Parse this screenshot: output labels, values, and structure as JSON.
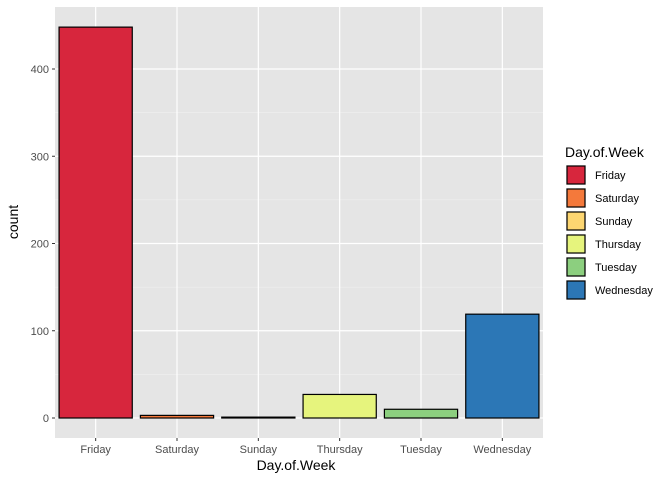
{
  "chart_data": {
    "type": "bar",
    "xlabel": "Day.of.Week",
    "ylabel": "count",
    "categories": [
      "Friday",
      "Saturday",
      "Sunday",
      "Thursday",
      "Tuesday",
      "Wednesday"
    ],
    "values": [
      448,
      3,
      1,
      27,
      10,
      119
    ],
    "colors": [
      "#D7263D",
      "#F4793B",
      "#FDD671",
      "#E6F47D",
      "#8CCF7F",
      "#2C77B6"
    ],
    "ylim": [
      0,
      470
    ],
    "yticks": [
      0,
      100,
      200,
      300,
      400
    ],
    "grid": true,
    "panel_background": "#E5E5E5",
    "legend": {
      "title": "Day.of.Week",
      "position": "right",
      "entries": [
        "Friday",
        "Saturday",
        "Sunday",
        "Thursday",
        "Tuesday",
        "Wednesday"
      ]
    }
  }
}
